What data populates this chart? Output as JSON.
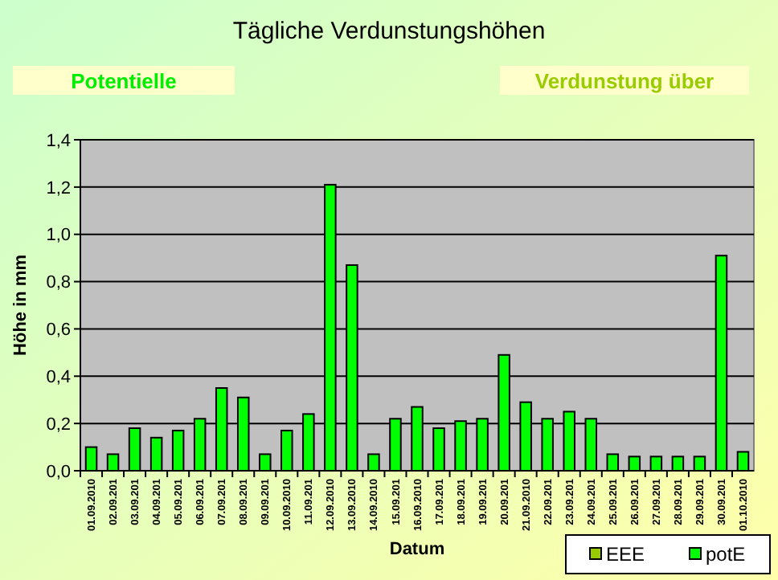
{
  "chart_data": {
    "type": "bar",
    "title": "Tägliche Verdunstungshöhen",
    "annotations": [
      "Potentielle",
      "Verdunstung über"
    ],
    "xlabel": "Datum",
    "ylabel": "Höhe in mm",
    "categories": [
      "01.09.2010",
      "02.09.201",
      "03.09.201",
      "04.09.201",
      "05.09.201",
      "06.09.201",
      "07.09.201",
      "08.09.201",
      "09.09.201",
      "10.09.2010",
      "11.09.201",
      "12.09.2010",
      "13.09.2010",
      "14.09.2010",
      "15.09.201",
      "16.09.2010",
      "17.09.201",
      "18.09.201",
      "19.09.201",
      "20.09.201",
      "21.09.2010",
      "22.09.201",
      "23.09.201",
      "24.09.201",
      "25.09.201",
      "26.09.201",
      "27.09.201",
      "28.09.201",
      "29.09.201",
      "30.09.201",
      "01.10.2010"
    ],
    "series": [
      {
        "name": "EEE",
        "color": "#99cc00",
        "values": [
          null,
          null,
          null,
          null,
          null,
          null,
          null,
          null,
          null,
          null,
          null,
          null,
          null,
          null,
          null,
          null,
          null,
          null,
          null,
          null,
          null,
          null,
          null,
          null,
          null,
          null,
          null,
          null,
          null,
          null,
          null
        ]
      },
      {
        "name": "potE",
        "color": "#00ff00",
        "values": [
          0.1,
          0.07,
          0.18,
          0.14,
          0.17,
          0.22,
          0.35,
          0.31,
          0.07,
          0.17,
          0.24,
          1.21,
          0.87,
          0.07,
          0.22,
          0.27,
          0.18,
          0.21,
          0.22,
          0.49,
          0.29,
          0.22,
          0.25,
          0.22,
          0.07,
          0.06,
          0.06,
          0.06,
          0.06,
          0.91,
          0.08
        ]
      }
    ],
    "ylim": [
      0,
      1.4
    ],
    "yticks": [
      {
        "value": 0,
        "label": "0,0"
      },
      {
        "value": 0.2,
        "label": "0,2"
      },
      {
        "value": 0.4,
        "label": "0,4"
      },
      {
        "value": 0.6,
        "label": "0,6"
      },
      {
        "value": 0.8,
        "label": "0,8"
      },
      {
        "value": 1,
        "label": "1,0"
      },
      {
        "value": 1.2,
        "label": "1,2"
      },
      {
        "value": 1.4,
        "label": "1,4"
      }
    ],
    "grid": "y",
    "legend": "bottom right"
  }
}
